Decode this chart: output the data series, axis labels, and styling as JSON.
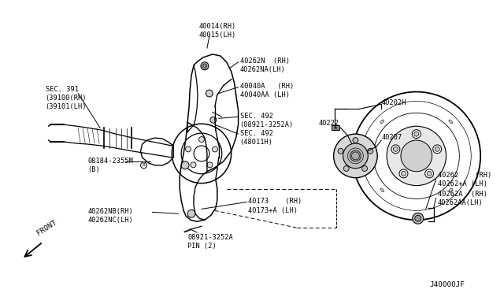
{
  "bg_color": "#ffffff",
  "line_color": "#000000",
  "font_size": 6.2,
  "labels": {
    "40014": "40014(RH)\n40015(LH)",
    "40262N": "40262N  (RH)\n40262NA(LH)",
    "40040A": "40040A   (RH)\n40040AA (LH)",
    "SEC391": "SEC. 391\n(39100(RH)\n(39101(LH)",
    "SEC492a": "SEC. 492\n(08921-3252A)",
    "SEC492b": "SEC. 492\n(48011H)",
    "08184": "08184-2355M\n(B)",
    "40173": "40173    (RH)\n40173+A (LH)",
    "40262NB": "40262NB(RH)\n40262NC(LH)",
    "08921pin": "08921-3252A\nPIN (2)",
    "40202H": "40202H",
    "40222": "40222",
    "40207": "40207",
    "40262": "40262    (RH)\n40262+A (LH)",
    "40262A": "40262A  (RH)\n40262AA(LH)",
    "FRONT": "FRONT",
    "J40000JF": "J40000JF"
  }
}
